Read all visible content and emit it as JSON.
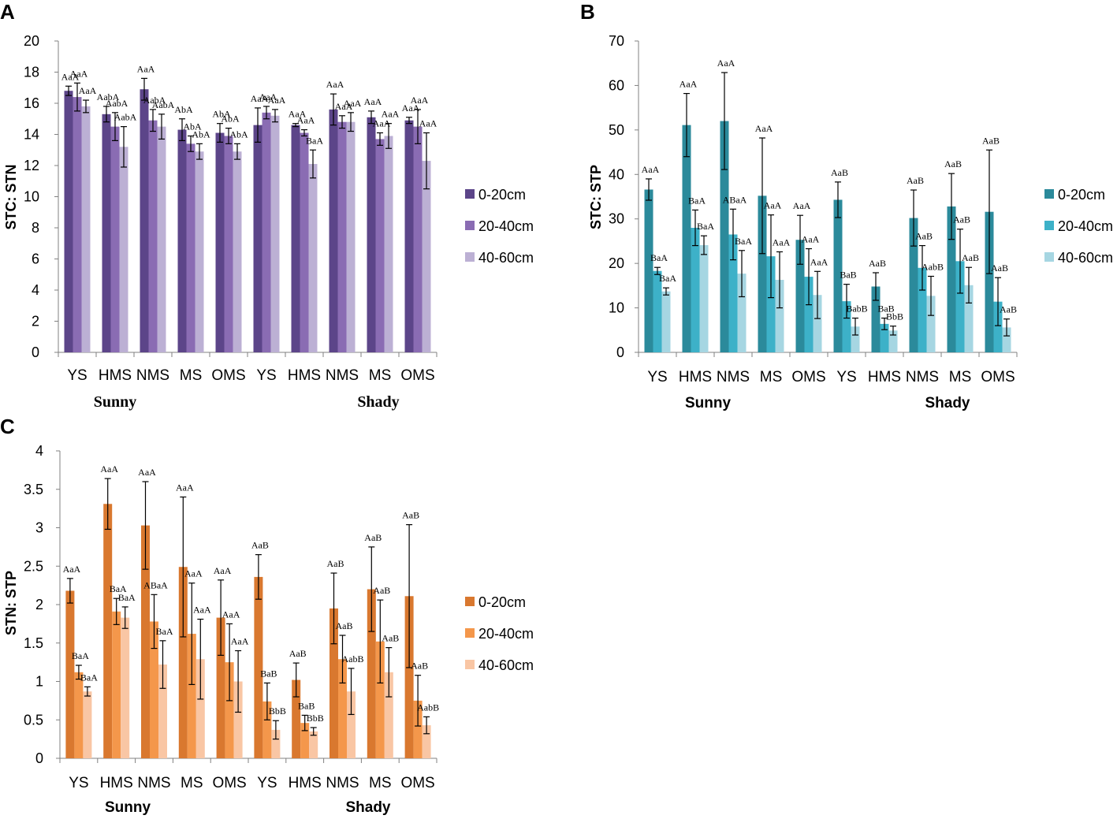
{
  "chart_data": [
    {
      "id": "A",
      "panel_label": "A",
      "type": "bar",
      "ylabel": "STC: STN",
      "ylim": [
        0,
        20
      ],
      "yticks": [
        0,
        2,
        4,
        6,
        8,
        10,
        12,
        14,
        16,
        18,
        20
      ],
      "categories": [
        "YS",
        "HMS",
        "NMS",
        "MS",
        "OMS",
        "YS",
        "HMS",
        "NMS",
        "MS",
        "OMS"
      ],
      "groups": [
        "Sunny",
        "Shady"
      ],
      "colors": [
        "#5c4589",
        "#8a6cb3",
        "#bcb0d4"
      ],
      "series": [
        {
          "name": "0-20cm",
          "values": [
            16.8,
            15.3,
            16.9,
            14.3,
            14.1,
            14.6,
            14.6,
            15.6,
            15.1,
            14.9
          ],
          "errors": [
            0.3,
            0.5,
            0.7,
            0.7,
            0.6,
            1.1,
            0.1,
            1.0,
            0.4,
            0.2
          ],
          "labels": [
            "AaA",
            "AabA",
            "AaA",
            "AbA",
            "AbA",
            "AaA",
            "AaA",
            "AaA",
            "AaA",
            "AaA"
          ]
        },
        {
          "name": "20-40cm",
          "values": [
            16.4,
            14.5,
            14.9,
            13.4,
            13.9,
            15.4,
            14.1,
            14.8,
            13.7,
            14.5
          ],
          "errors": [
            0.9,
            0.9,
            0.7,
            0.5,
            0.5,
            0.4,
            0.2,
            0.4,
            0.4,
            1.1
          ],
          "labels": [
            "AaA",
            "AabA",
            "AabA",
            "AbA",
            "AbA",
            "AaA",
            "AaA",
            "AaA",
            "AaA",
            "AaA"
          ]
        },
        {
          "name": "40-60cm",
          "values": [
            15.8,
            13.2,
            14.5,
            12.9,
            12.9,
            15.2,
            12.1,
            14.8,
            13.9,
            12.3
          ],
          "errors": [
            0.4,
            1.3,
            0.8,
            0.5,
            0.5,
            0.4,
            0.9,
            0.6,
            0.8,
            1.8
          ],
          "labels": [
            "AaA",
            "AabA",
            "AabA",
            "AbA",
            "AbA",
            "AaA",
            "BaA",
            "AaA",
            "AaA",
            "AaA"
          ]
        }
      ]
    },
    {
      "id": "B",
      "panel_label": "B",
      "type": "bar",
      "ylabel": "STC: STP",
      "ylim": [
        0,
        70
      ],
      "yticks": [
        0,
        10,
        20,
        30,
        40,
        50,
        60,
        70
      ],
      "categories": [
        "YS",
        "HMS",
        "NMS",
        "MS",
        "OMS",
        "YS",
        "HMS",
        "NMS",
        "MS",
        "OMS"
      ],
      "groups": [
        "Sunny",
        "Shady"
      ],
      "colors": [
        "#2b8a9b",
        "#3db1c8",
        "#a6d6e2"
      ],
      "series": [
        {
          "name": "0-20cm",
          "values": [
            36.6,
            51.1,
            52.0,
            35.2,
            25.3,
            34.3,
            14.8,
            30.2,
            32.8,
            31.6
          ],
          "errors": [
            2.4,
            7.1,
            10.9,
            13.0,
            5.5,
            4.0,
            3.1,
            6.3,
            7.4,
            13.9
          ],
          "labels": [
            "AaA",
            "AaA",
            "AaA",
            "AaA",
            "AaA",
            "AaB",
            "AaB",
            "AaB",
            "AaB",
            "AaB"
          ]
        },
        {
          "name": "20-40cm",
          "values": [
            18.3,
            28.0,
            26.5,
            21.6,
            17.0,
            11.5,
            6.4,
            19.0,
            20.5,
            11.4
          ],
          "errors": [
            0.8,
            4.0,
            5.7,
            9.3,
            6.3,
            3.8,
            1.3,
            5.0,
            7.2,
            5.4
          ],
          "labels": [
            "BaA",
            "BaA",
            "ABaA",
            "AaA",
            "AaA",
            "BaB",
            "BaB",
            "AaB",
            "AaB",
            "AaB"
          ]
        },
        {
          "name": "40-60cm",
          "values": [
            13.7,
            24.1,
            17.7,
            16.3,
            12.9,
            5.8,
            4.9,
            12.7,
            15.1,
            5.6
          ],
          "errors": [
            0.8,
            2.1,
            5.2,
            6.3,
            5.3,
            1.9,
            1.0,
            4.4,
            4.0,
            1.9
          ],
          "labels": [
            "BaA",
            "BaA",
            "BaA",
            "AaA",
            "AaA",
            "BabB",
            "BbB",
            "AabB",
            "AaB",
            "AaB"
          ]
        }
      ]
    },
    {
      "id": "C",
      "panel_label": "C",
      "type": "bar",
      "ylabel": "STN: STP",
      "ylim": [
        0,
        4
      ],
      "yticks": [
        "0",
        "0.5",
        "1",
        "1.5",
        "2",
        "2.5",
        "3",
        "3.5",
        "4"
      ],
      "categories": [
        "YS",
        "HMS",
        "NMS",
        "MS",
        "OMS",
        "YS",
        "HMS",
        "NMS",
        "MS",
        "OMS"
      ],
      "groups": [
        "Sunny",
        "Shady"
      ],
      "colors": [
        "#d9782f",
        "#f4974b",
        "#f9c6a4"
      ],
      "series": [
        {
          "name": "0-20cm",
          "values": [
            2.18,
            3.31,
            3.03,
            2.49,
            1.83,
            2.36,
            1.02,
            1.95,
            2.2,
            2.11
          ],
          "errors": [
            0.16,
            0.33,
            0.57,
            0.91,
            0.49,
            0.29,
            0.22,
            0.46,
            0.55,
            0.93
          ],
          "labels": [
            "AaA",
            "AaA",
            "AaA",
            "AaA",
            "AaA",
            "AaB",
            "AaB",
            "AaB",
            "AaB",
            "AaB"
          ]
        },
        {
          "name": "20-40cm",
          "values": [
            1.12,
            1.91,
            1.78,
            1.62,
            1.25,
            0.74,
            0.46,
            1.29,
            1.52,
            0.75
          ],
          "errors": [
            0.09,
            0.17,
            0.35,
            0.66,
            0.5,
            0.24,
            0.1,
            0.31,
            0.54,
            0.33
          ],
          "labels": [
            "BaA",
            "BaA",
            "ABaA",
            "AaA",
            "AaA",
            "BaB",
            "BaB",
            "AaB",
            "AaB",
            "AaB"
          ]
        },
        {
          "name": "40-60cm",
          "values": [
            0.87,
            1.83,
            1.22,
            1.29,
            1.0,
            0.37,
            0.35,
            0.87,
            1.12,
            0.43
          ],
          "errors": [
            0.06,
            0.14,
            0.31,
            0.52,
            0.4,
            0.12,
            0.05,
            0.3,
            0.32,
            0.11
          ],
          "labels": [
            "BaA",
            "BaA",
            "BaA",
            "AaA",
            "AaA",
            "BbB",
            "BbB",
            "AabB",
            "AaB",
            "AabB"
          ]
        }
      ]
    }
  ]
}
